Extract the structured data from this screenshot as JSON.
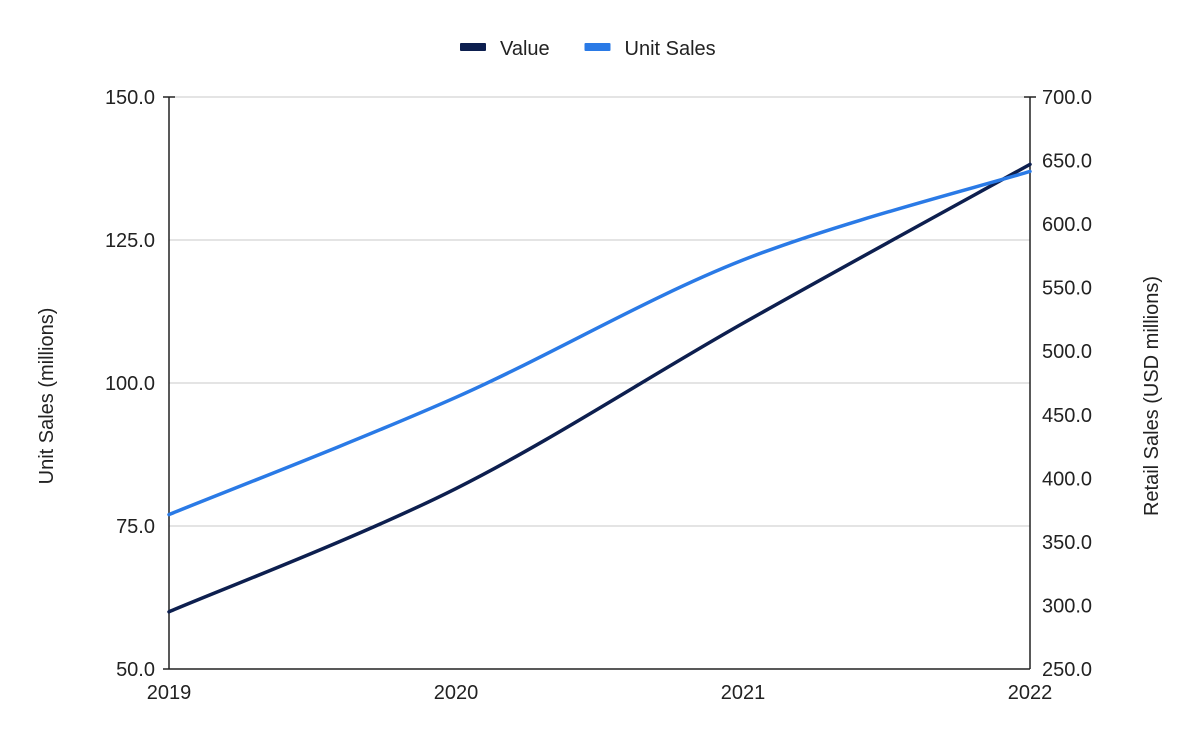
{
  "chart_data": {
    "type": "line",
    "x": [
      "2019",
      "2020",
      "2021",
      "2022"
    ],
    "series": [
      {
        "name": "Value",
        "axis": "right",
        "color": "#0d1f4f",
        "values": [
          295,
          392,
          522,
          647
        ]
      },
      {
        "name": "Unit Sales",
        "axis": "left",
        "color": "#2a7ae6",
        "values": [
          77.0,
          97.5,
          121.5,
          137.0
        ]
      }
    ],
    "y_left": {
      "label": "Unit Sales (millions)",
      "range": [
        50,
        150
      ],
      "ticks": [
        "50.0",
        "75.0",
        "100.0",
        "125.0",
        "150.0"
      ]
    },
    "y_right": {
      "label": "Retail Sales (USD millions)",
      "range": [
        250,
        700
      ],
      "ticks": [
        "250.0",
        "300.0",
        "350.0",
        "400.0",
        "450.0",
        "500.0",
        "550.0",
        "600.0",
        "650.0",
        "700.0"
      ]
    },
    "grid": true,
    "legend_position": "top"
  }
}
